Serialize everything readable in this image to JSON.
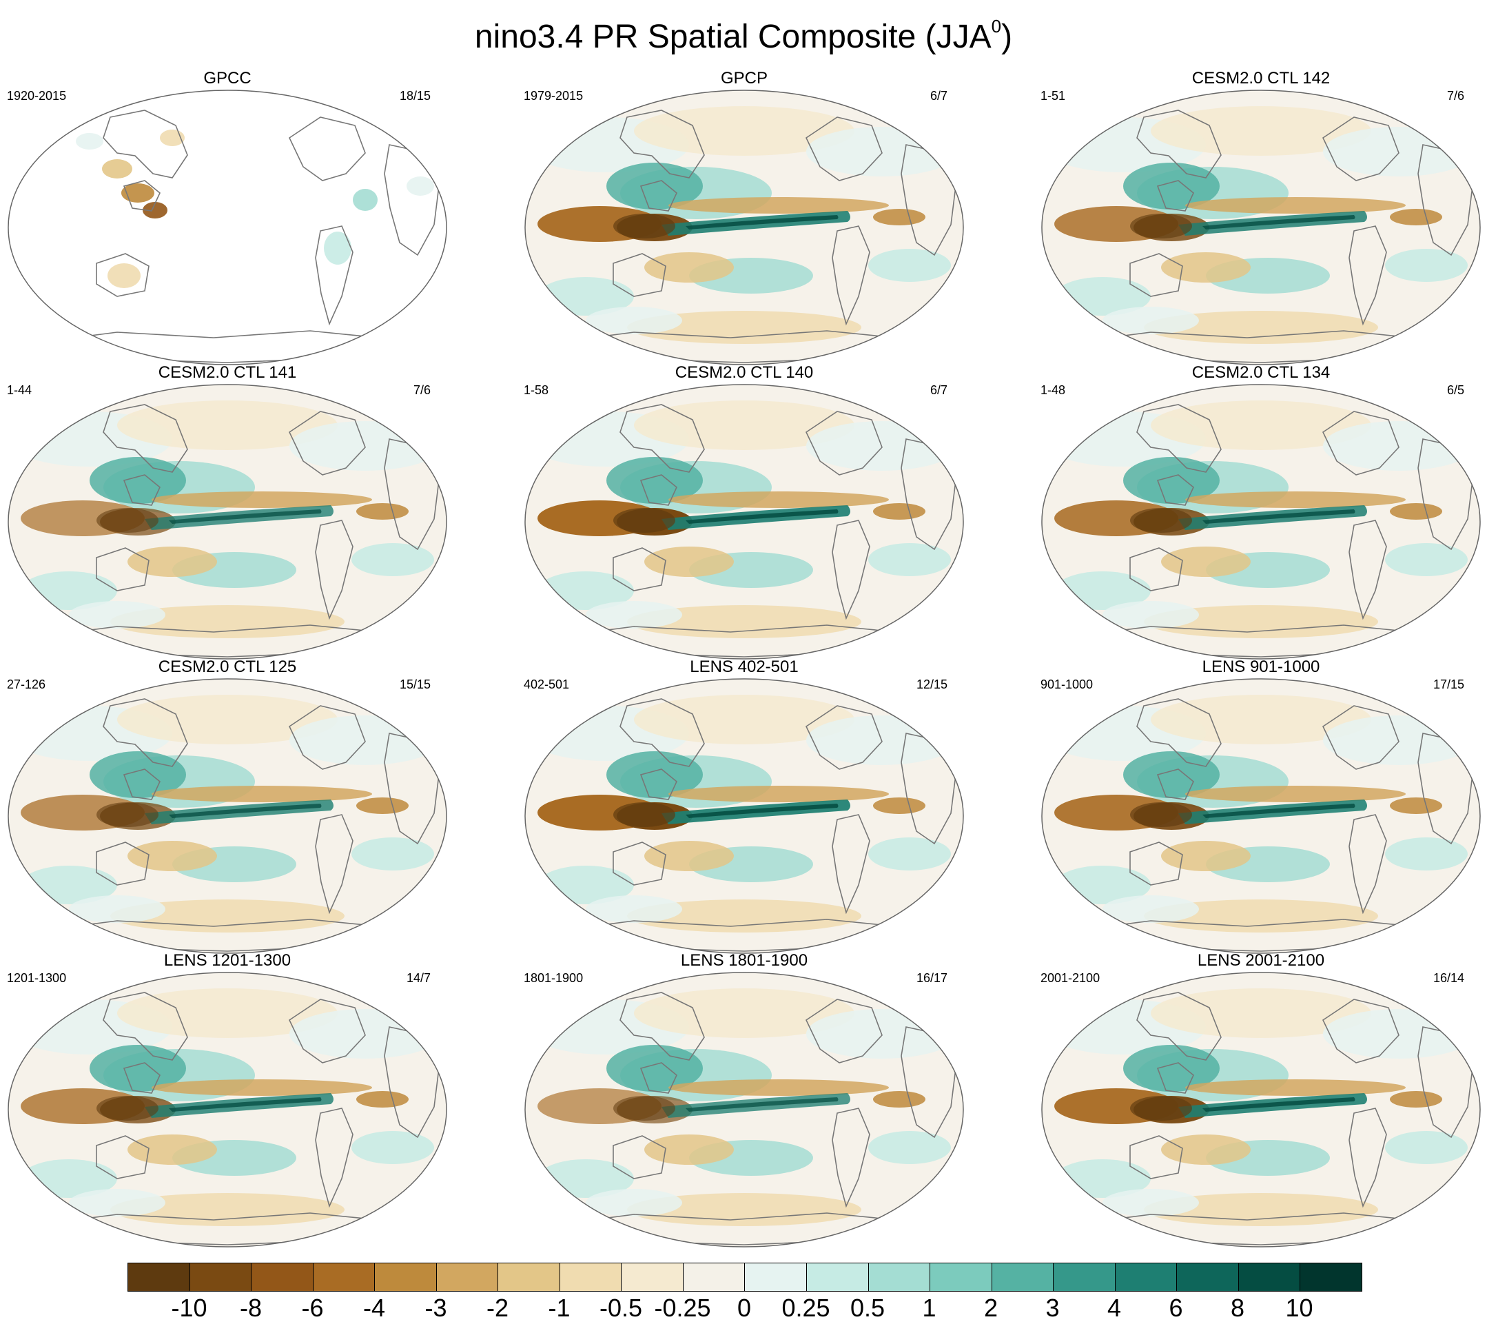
{
  "title_main": "nino3.4 PR Spatial Composite (JJA",
  "title_sup": "0",
  "title_close": ")",
  "panels": [
    {
      "title": "GPCC",
      "left": "1920-2015",
      "right": "18/15"
    },
    {
      "title": "GPCP",
      "left": "1979-2015",
      "right": "6/7"
    },
    {
      "title": "CESM2.0 CTL 142",
      "left": "1-51",
      "right": "7/6"
    },
    {
      "title": "CESM2.0 CTL 141",
      "left": "1-44",
      "right": "7/6"
    },
    {
      "title": "CESM2.0 CTL 140",
      "left": "1-58",
      "right": "6/7"
    },
    {
      "title": "CESM2.0 CTL 134",
      "left": "1-48",
      "right": "6/5"
    },
    {
      "title": "CESM2.0 CTL 125",
      "left": "27-126",
      "right": "15/15"
    },
    {
      "title": "LENS 402-501",
      "left": "402-501",
      "right": "12/15"
    },
    {
      "title": "LENS 901-1000",
      "left": "901-1000",
      "right": "17/15"
    },
    {
      "title": "LENS 1201-1300",
      "left": "1201-1300",
      "right": "14/7"
    },
    {
      "title": "LENS 1801-1900",
      "left": "1801-1900",
      "right": "16/17"
    },
    {
      "title": "LENS 2001-2100",
      "left": "2001-2100",
      "right": "16/14"
    }
  ],
  "colorbar": {
    "colors": [
      "#5e3a0f",
      "#7a4a12",
      "#935718",
      "#a96c24",
      "#be8a3c",
      "#d2a760",
      "#e3c688",
      "#f0dcb0",
      "#f5ead0",
      "#f4f1e8",
      "#e6f3f1",
      "#c6ebe4",
      "#a4ddd3",
      "#7ccbbd",
      "#55b2a3",
      "#35988a",
      "#1e7f72",
      "#0e665a",
      "#054d42",
      "#01352d"
    ],
    "labels": [
      "-10",
      "-8",
      "-6",
      "-4",
      "-3",
      "-2",
      "-1",
      "-0.5",
      "-0.25",
      "0",
      "0.25",
      "0.5",
      "1",
      "2",
      "3",
      "4",
      "6",
      "8",
      "10"
    ]
  }
}
